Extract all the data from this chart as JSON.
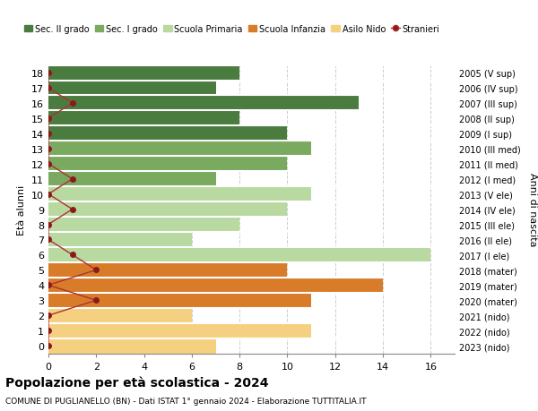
{
  "ages": [
    18,
    17,
    16,
    15,
    14,
    13,
    12,
    11,
    10,
    9,
    8,
    7,
    6,
    5,
    4,
    3,
    2,
    1,
    0
  ],
  "years": [
    "2005 (V sup)",
    "2006 (IV sup)",
    "2007 (III sup)",
    "2008 (II sup)",
    "2009 (I sup)",
    "2010 (III med)",
    "2011 (II med)",
    "2012 (I med)",
    "2013 (V ele)",
    "2014 (IV ele)",
    "2015 (III ele)",
    "2016 (II ele)",
    "2017 (I ele)",
    "2018 (mater)",
    "2019 (mater)",
    "2020 (mater)",
    "2021 (nido)",
    "2022 (nido)",
    "2023 (nido)"
  ],
  "values": [
    8,
    7,
    13,
    8,
    10,
    11,
    10,
    7,
    11,
    10,
    8,
    6,
    16,
    10,
    14,
    11,
    6,
    11,
    7
  ],
  "stranieri": [
    0,
    0,
    1,
    0,
    0,
    0,
    0,
    1,
    0,
    1,
    0,
    0,
    1,
    2,
    0,
    2,
    0,
    0,
    0
  ],
  "categories": [
    "Sec. II grado",
    "Sec. I grado",
    "Scuola Primaria",
    "Scuola Infanzia",
    "Asilo Nido"
  ],
  "bar_colors": {
    "Sec. II grado": "#4a7c3f",
    "Sec. I grado": "#7aaa5f",
    "Scuola Primaria": "#b8d9a0",
    "Scuola Infanzia": "#d97c2a",
    "Asilo Nido": "#f5d080"
  },
  "age_category": {
    "18": "Sec. II grado",
    "17": "Sec. II grado",
    "16": "Sec. II grado",
    "15": "Sec. II grado",
    "14": "Sec. II grado",
    "13": "Sec. I grado",
    "12": "Sec. I grado",
    "11": "Sec. I grado",
    "10": "Scuola Primaria",
    "9": "Scuola Primaria",
    "8": "Scuola Primaria",
    "7": "Scuola Primaria",
    "6": "Scuola Primaria",
    "5": "Scuola Infanzia",
    "4": "Scuola Infanzia",
    "3": "Scuola Infanzia",
    "2": "Asilo Nido",
    "1": "Asilo Nido",
    "0": "Asilo Nido"
  },
  "stranieri_color": "#8b1a1a",
  "stranieri_line_color": "#b03030",
  "xlim_max": 17,
  "xticks": [
    0,
    2,
    4,
    6,
    8,
    10,
    12,
    14,
    16
  ],
  "ylabel_left": "Età alunni",
  "ylabel_right": "Anni di nascita",
  "title": "Popolazione per età scolastica - 2024",
  "subtitle": "COMUNE DI PUGLIANELLO (BN) - Dati ISTAT 1° gennaio 2024 - Elaborazione TUTTITALIA.IT",
  "bg_color": "#ffffff",
  "grid_color": "#cccccc",
  "legend_dot_label": "Stranieri"
}
